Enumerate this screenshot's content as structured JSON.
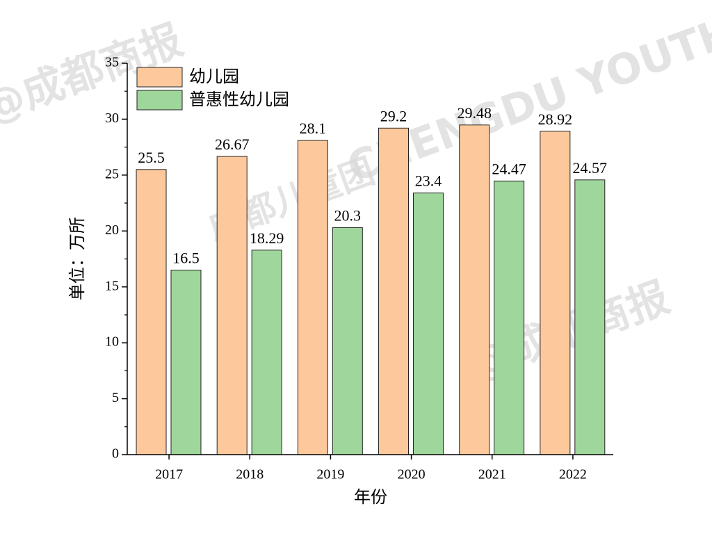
{
  "chart_data": {
    "type": "bar",
    "x_label": "年份",
    "y_label": "单位：万所",
    "categories": [
      "2017",
      "2018",
      "2019",
      "2020",
      "2021",
      "2022"
    ],
    "series": [
      {
        "name": "幼儿园",
        "color": "#fdc99c",
        "values": [
          25.5,
          26.67,
          28.1,
          29.2,
          29.48,
          28.92
        ]
      },
      {
        "name": "普惠性幼儿园",
        "color": "#9fd69b",
        "values": [
          16.5,
          18.29,
          20.3,
          23.4,
          24.47,
          24.57
        ]
      }
    ],
    "ylim": [
      0,
      35
    ],
    "yticks": [
      0,
      5,
      10,
      15,
      20,
      25,
      30,
      35
    ],
    "legend": "upper-left",
    "watermarks": [
      "@成都商报",
      "CHENGDU YOUTH CAMP",
      "成都儿童团",
      "@成都商报"
    ]
  }
}
